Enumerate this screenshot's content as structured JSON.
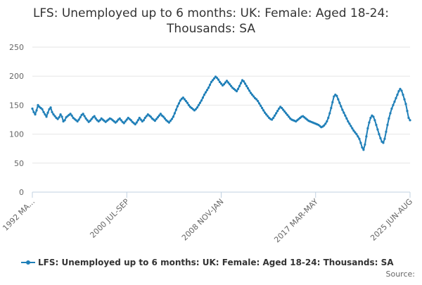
{
  "chart_data": {
    "type": "line",
    "title_line1": "LFS: Unemployed up to 6 months: UK: Female: Aged 18-24:",
    "title_line2": "Thousands: SA",
    "ylim": [
      0,
      250
    ],
    "y_ticks": [
      "0",
      "50",
      "100",
      "150",
      "200",
      "250"
    ],
    "x_tick_labels": [
      "1992 MA...",
      "2000 JUL-SEP",
      "2008 NOV-JAN",
      "2017 MAR-MAY",
      "2025 JUN-AUG"
    ],
    "grid": "horizontal",
    "legend_position": "bottom",
    "credit": "Source:",
    "series": [
      {
        "name": "LFS: Unemployed up to 6 months: UK: Female: Aged 18-24: Thousands: SA",
        "color": "#1f7fb8",
        "values": [
          144,
          138,
          134,
          141,
          150,
          147,
          145,
          143,
          138,
          134,
          130,
          137,
          143,
          146,
          138,
          134,
          131,
          128,
          126,
          129,
          134,
          130,
          122,
          124,
          129,
          131,
          133,
          135,
          132,
          128,
          126,
          124,
          122,
          125,
          129,
          133,
          135,
          131,
          127,
          124,
          121,
          123,
          126,
          129,
          131,
          127,
          124,
          122,
          124,
          127,
          125,
          123,
          121,
          123,
          125,
          127,
          126,
          124,
          122,
          120,
          122,
          125,
          127,
          124,
          121,
          119,
          122,
          125,
          128,
          126,
          124,
          121,
          119,
          117,
          120,
          124,
          128,
          125,
          122,
          124,
          128,
          131,
          134,
          132,
          130,
          127,
          125,
          123,
          126,
          129,
          132,
          135,
          132,
          130,
          127,
          124,
          122,
          120,
          123,
          126,
          130,
          136,
          142,
          148,
          153,
          158,
          161,
          163,
          160,
          157,
          154,
          150,
          147,
          145,
          143,
          141,
          143,
          146,
          150,
          154,
          158,
          163,
          168,
          172,
          176,
          180,
          185,
          190,
          193,
          196,
          199,
          197,
          194,
          190,
          187,
          184,
          186,
          189,
          192,
          189,
          186,
          183,
          180,
          178,
          176,
          174,
          178,
          183,
          188,
          193,
          191,
          187,
          183,
          179,
          175,
          171,
          168,
          165,
          162,
          160,
          157,
          153,
          149,
          145,
          141,
          137,
          134,
          131,
          128,
          126,
          125,
          128,
          132,
          136,
          140,
          144,
          147,
          145,
          142,
          139,
          136,
          133,
          130,
          127,
          125,
          124,
          123,
          122,
          124,
          126,
          128,
          130,
          131,
          129,
          127,
          125,
          123,
          122,
          121,
          120,
          119,
          118,
          117,
          116,
          114,
          112,
          113,
          115,
          118,
          122,
          128,
          136,
          145,
          155,
          165,
          168,
          166,
          160,
          154,
          148,
          142,
          137,
          132,
          127,
          122,
          118,
          114,
          110,
          106,
          103,
          100,
          96,
          92,
          85,
          77,
          73,
          82,
          96,
          110,
          120,
          128,
          132,
          130,
          124,
          116,
          108,
          100,
          93,
          87,
          85,
          92,
          104,
          116,
          127,
          136,
          144,
          150,
          156,
          162,
          168,
          174,
          178,
          175,
          168,
          160,
          152,
          140,
          128,
          124
        ]
      }
    ]
  }
}
